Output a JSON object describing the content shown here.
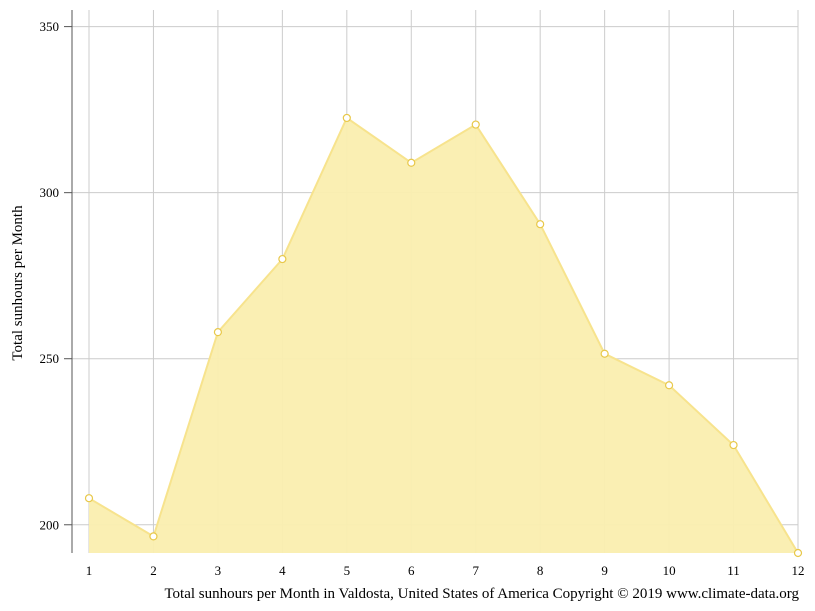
{
  "chart_data": {
    "type": "area",
    "x": [
      1,
      2,
      3,
      4,
      5,
      6,
      7,
      8,
      9,
      10,
      11,
      12
    ],
    "series": [
      {
        "name": "",
        "values": [
          208,
          196.5,
          258,
          280,
          322.5,
          309,
          320.5,
          290.5,
          251.5,
          242,
          224,
          191.5
        ]
      }
    ],
    "xlim": [
      1,
      12
    ],
    "ylim": [
      191.5,
      355
    ],
    "yticks": [
      200,
      250,
      300,
      350
    ],
    "xticks": [
      1,
      2,
      3,
      4,
      5,
      6,
      7,
      8,
      9,
      10,
      11,
      12
    ],
    "xlabel": "",
    "ylabel": "Total sunhours per Month",
    "caption": "Total sunhours per Month in Valdosta, United States of America Copyright © 2019 www.climate-data.org",
    "grid": true,
    "legend": "none",
    "colors": {
      "fill": "#faeeaf",
      "line": "#f7e38d",
      "marker_fill": "#ffffff",
      "marker_stroke": "#e8c84a",
      "grid": "#cccccc",
      "axis": "#555555"
    }
  }
}
